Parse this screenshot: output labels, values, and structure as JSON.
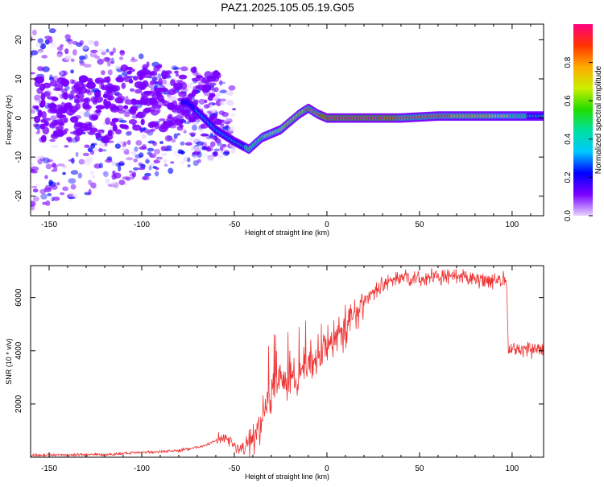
{
  "title": "PAZ1.2025.105.05.19.G05",
  "chart_data": [
    {
      "type": "heatmap",
      "xlabel": "Height of straight line (km)",
      "ylabel": "Frequency (Hz)",
      "xlim": [
        -160,
        117
      ],
      "ylim": [
        -25,
        24
      ],
      "xticks": [
        -150,
        -100,
        -50,
        0,
        50,
        100
      ],
      "yticks": [
        -20,
        -10,
        0,
        10,
        20
      ],
      "colorbar": {
        "label": "Normalized spectral amplitude",
        "range": [
          0,
          1
        ],
        "ticks": [
          "0.0",
          "0.2",
          "0.4",
          "0.6",
          "0.8"
        ],
        "colors": [
          "#e6d3ff",
          "#7a00ff",
          "#0000ff",
          "#00c8ff",
          "#00e0a0",
          "#22dd00",
          "#ccee00",
          "#ffaa00",
          "#ff3300",
          "#ff0080"
        ]
      },
      "ridge": {
        "x": [
          -75,
          -60,
          -50,
          -42,
          -35,
          -25,
          -15,
          -10,
          -5,
          0,
          20,
          40,
          60,
          80,
          100,
          117
        ],
        "y": [
          4,
          -3,
          -6,
          -8,
          -5,
          -3,
          1,
          2.5,
          1,
          0,
          0,
          0,
          0.5,
          0.5,
          0.5,
          0.5
        ],
        "amplitude": [
          0.25,
          0.35,
          0.4,
          0.55,
          0.6,
          0.7,
          0.8,
          0.85,
          0.9,
          0.95,
          1.0,
          0.9,
          0.85,
          0.8,
          0.6,
          0.4
        ]
      },
      "noise_region": {
        "x": [
          -160,
          -55
        ],
        "y_spread": [
          -25,
          24
        ]
      }
    },
    {
      "type": "line",
      "xlabel": "Height of straight line (km)",
      "ylabel": "SNR (10 * v/v)",
      "xlim": [
        -160,
        117
      ],
      "ylim": [
        0,
        7200
      ],
      "xticks": [
        -150,
        -100,
        -50,
        0,
        50,
        100
      ],
      "yticks": [
        2000,
        4000,
        6000
      ],
      "color": "#ee3333",
      "envelope": {
        "x": [
          -160,
          -120,
          -80,
          -65,
          -55,
          -48,
          -40,
          -35,
          -30,
          -25,
          -20,
          -15,
          -10,
          -5,
          0,
          10,
          20,
          30,
          40,
          50,
          60,
          70,
          80,
          90,
          97,
          98,
          100,
          110,
          117
        ],
        "y": [
          80,
          100,
          250,
          450,
          800,
          300,
          500,
          1500,
          2500,
          3000,
          2700,
          3000,
          3500,
          3600,
          4200,
          4900,
          5900,
          6500,
          6800,
          6700,
          6800,
          6750,
          6700,
          6650,
          6650,
          4000,
          4100,
          4050,
          3950
        ]
      }
    }
  ]
}
